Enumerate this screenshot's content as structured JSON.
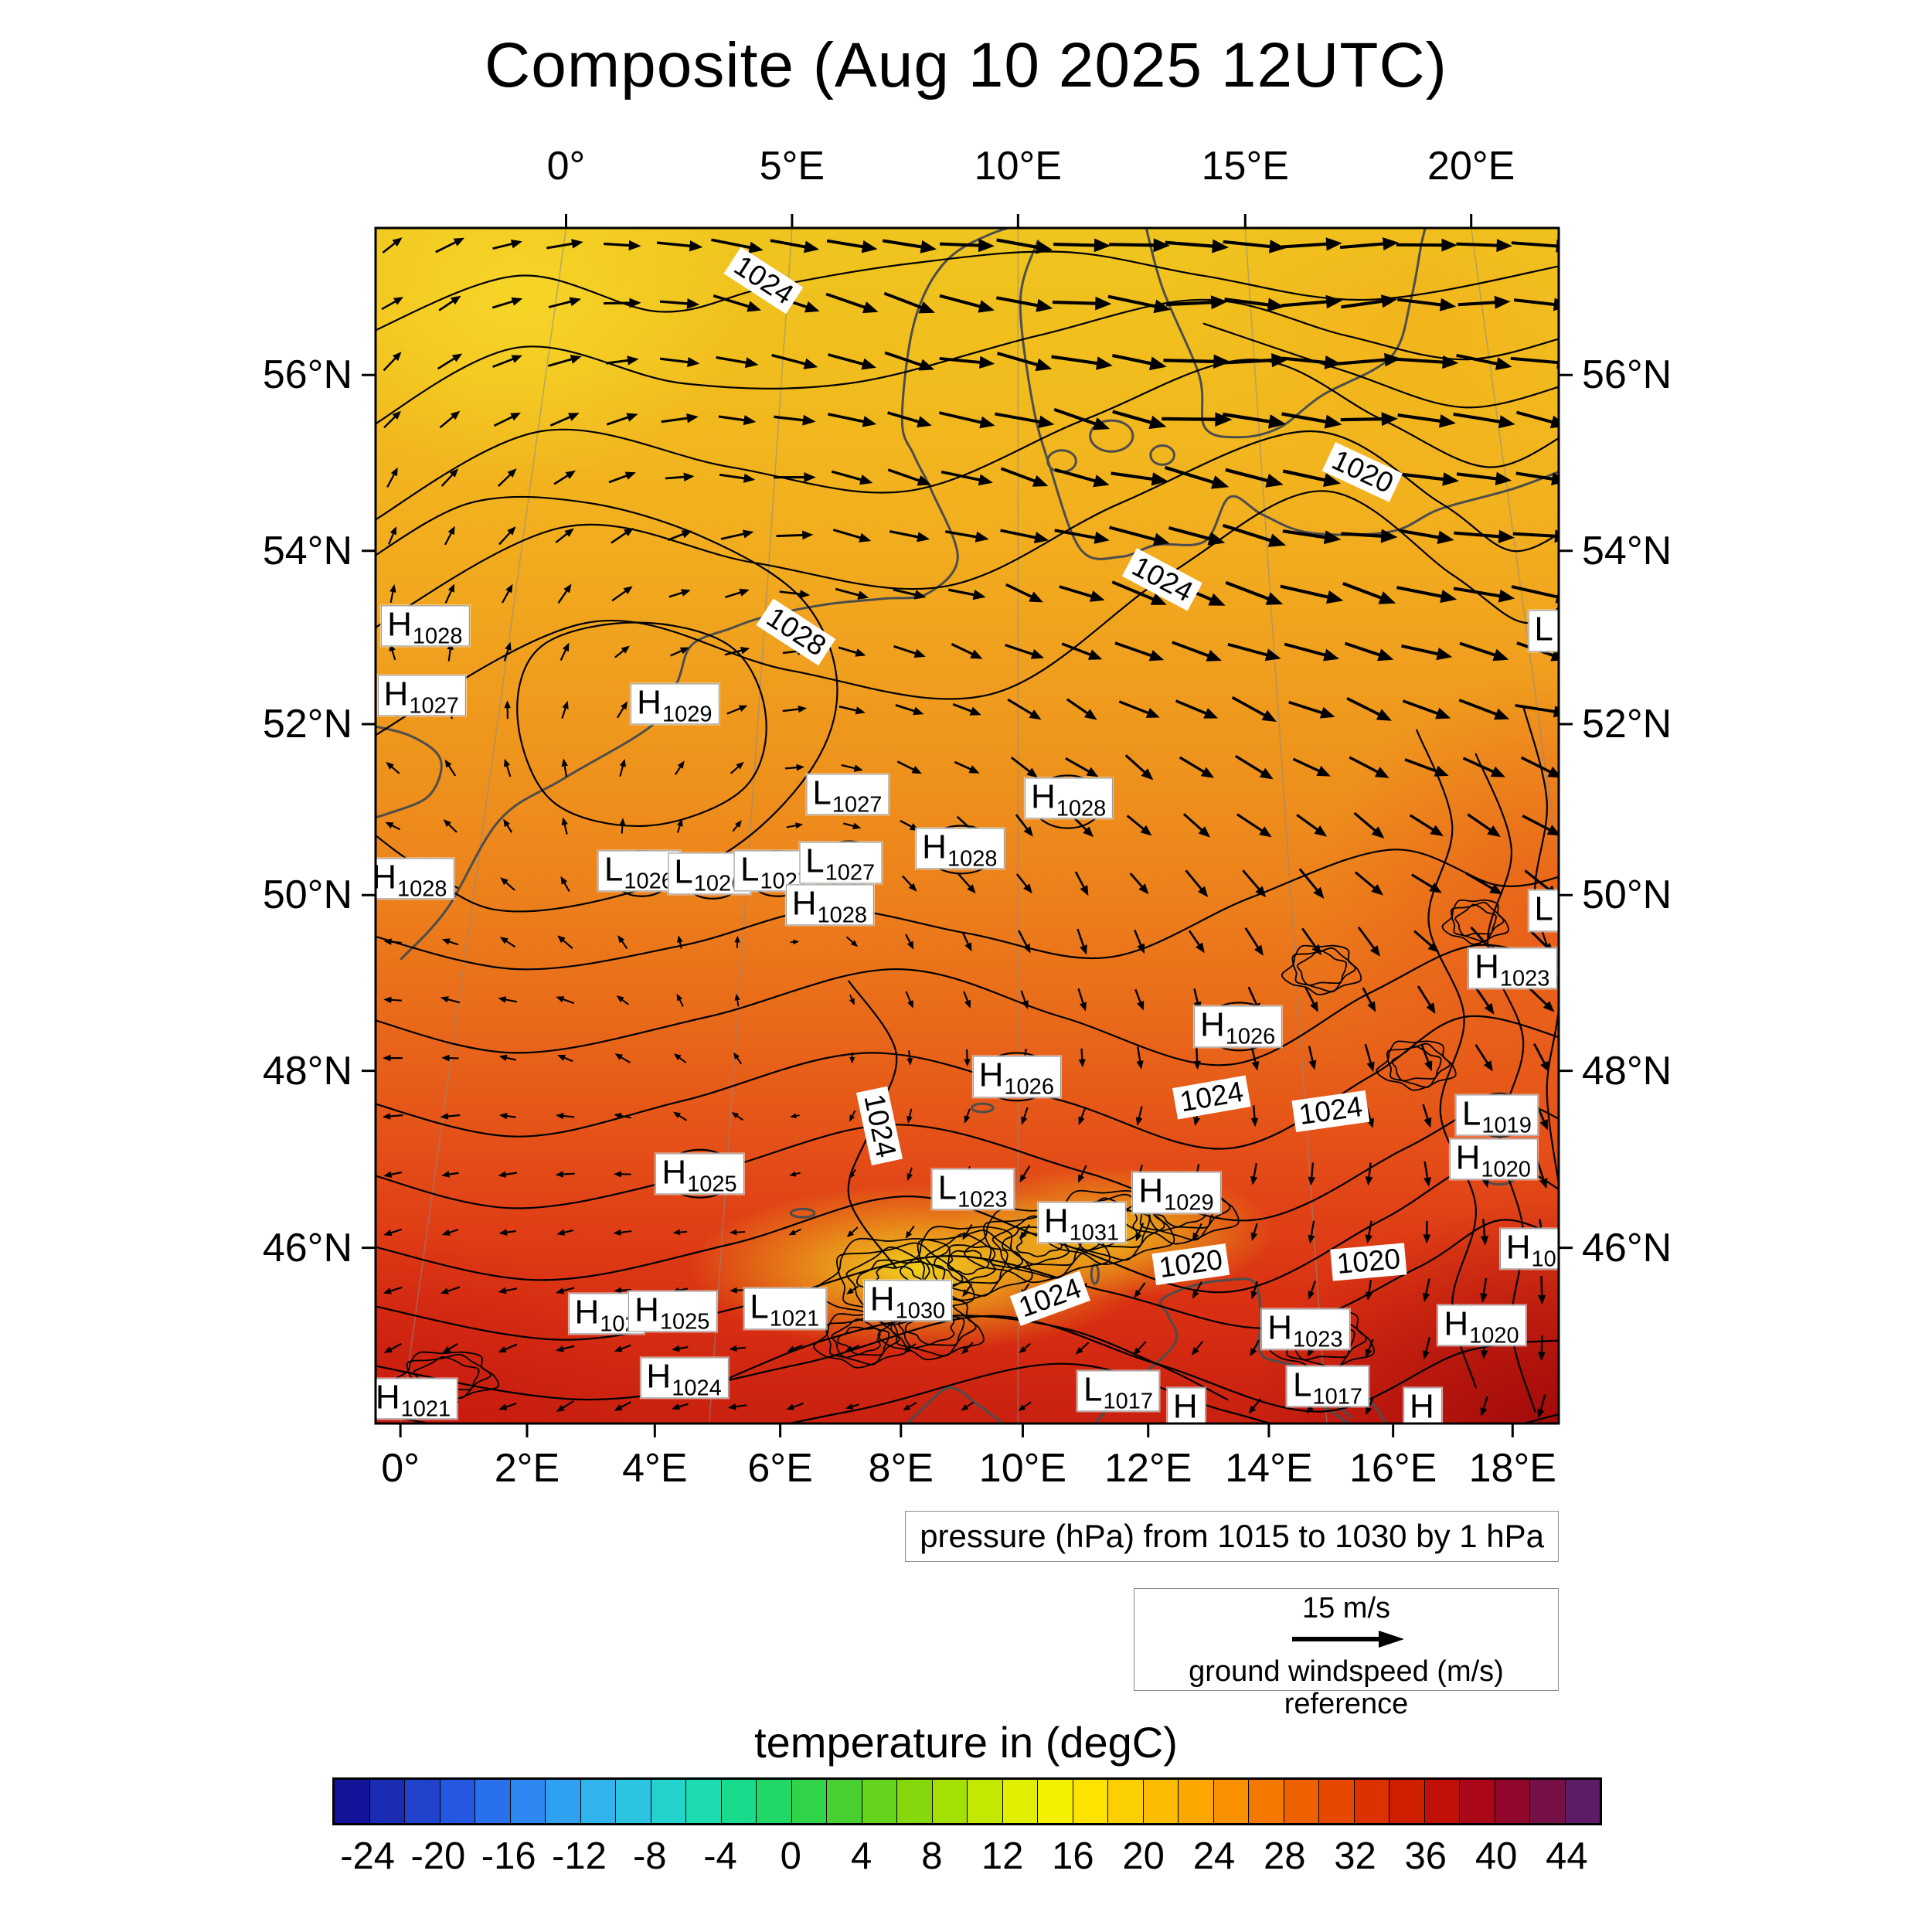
{
  "title": "Composite (Aug 10 2025 12UTC)",
  "axes": {
    "top_lon_labels": [
      "0°",
      "5°E",
      "10°E",
      "15°E",
      "20°E"
    ],
    "bottom_lon_labels": [
      "0°",
      "2°E",
      "4°E",
      "6°E",
      "8°E",
      "10°E",
      "12°E",
      "14°E",
      "16°E",
      "18°E"
    ],
    "lat_labels": [
      "56°N",
      "54°N",
      "52°N",
      "50°N",
      "48°N",
      "46°N"
    ]
  },
  "pressure_note": "pressure (hPa) from 1015 to 1030 by 1 hPa",
  "wind_legend": {
    "speed_label": "15 m/s",
    "caption": "ground windspeed (m/s) reference"
  },
  "colorbar": {
    "title": "temperature in (degC)",
    "tick_labels": [
      "-24",
      "-20",
      "-16",
      "-12",
      "-8",
      "-4",
      "0",
      "4",
      "8",
      "12",
      "16",
      "20",
      "24",
      "28",
      "32",
      "36",
      "40",
      "44"
    ],
    "colors": [
      "#14149b",
      "#1a2cb4",
      "#2042cc",
      "#2458e0",
      "#2870ec",
      "#2c88f0",
      "#30a0f0",
      "#30b4ec",
      "#2cc4e0",
      "#24d2cc",
      "#1cdcb0",
      "#18dc8c",
      "#20d868",
      "#30d448",
      "#48d030",
      "#64d41c",
      "#84d80c",
      "#a4e004",
      "#c4e800",
      "#e0ee00",
      "#f4f000",
      "#fce400",
      "#fcd000",
      "#fcbc00",
      "#fca800",
      "#f89000",
      "#f47800",
      "#ee6000",
      "#e64800",
      "#dc3200",
      "#d01e00",
      "#c01008",
      "#aa0818",
      "#92082c",
      "#781048",
      "#5c1c66"
    ]
  },
  "chart_data": {
    "type": "heatmap",
    "title": "Composite (Aug 10 2025 12UTC)",
    "xlabel_ticks_top_deg_east": [
      0,
      5,
      10,
      15,
      20
    ],
    "xlabel_ticks_bottom_deg_east": [
      0,
      2,
      4,
      6,
      8,
      10,
      12,
      14,
      16,
      18
    ],
    "ylabel_ticks_deg_north": [
      56,
      54,
      52,
      50,
      48,
      46
    ],
    "temperature_scale": {
      "min": -26,
      "max": 46,
      "step": 2,
      "units": "degC"
    },
    "pressure_contours": {
      "from_hpa": 1015,
      "to_hpa": 1030,
      "interval_hpa": 1
    },
    "pressure_centers": [
      {
        "t": "H",
        "v": "1028",
        "x": 4.2,
        "y": 33.3
      },
      {
        "t": "H",
        "v": "1027",
        "x": 3.9,
        "y": 39.1
      },
      {
        "t": "H",
        "v": "1029",
        "x": 25.3,
        "y": 39.8
      },
      {
        "t": "L",
        "v": "1027",
        "x": 39.9,
        "y": 47.4
      },
      {
        "t": "H",
        "v": "1028",
        "x": 58.6,
        "y": 47.7
      },
      {
        "t": "H",
        "v": "1028",
        "x": 49.4,
        "y": 51.9
      },
      {
        "t": "L",
        "v": "1026",
        "x": 22.3,
        "y": 53.8
      },
      {
        "t": "L",
        "v": "1026",
        "x": 28.2,
        "y": 54.0
      },
      {
        "t": "L",
        "v": "1027",
        "x": 33.8,
        "y": 53.8
      },
      {
        "t": "L",
        "v": "1027",
        "x": 39.3,
        "y": 53.1
      },
      {
        "t": "H",
        "v": "1028",
        "x": 2.9,
        "y": 54.4
      },
      {
        "t": "H",
        "v": "1028",
        "x": 38.4,
        "y": 56.6
      },
      {
        "t": "L",
        "v": "",
        "x": 98.8,
        "y": 33.7
      },
      {
        "t": "L",
        "v": "",
        "x": 98.8,
        "y": 57.1
      },
      {
        "t": "H",
        "v": "1023",
        "x": 96.1,
        "y": 61.9
      },
      {
        "t": "H",
        "v": "1026",
        "x": 72.9,
        "y": 66.8
      },
      {
        "t": "H",
        "v": "1026",
        "x": 54.2,
        "y": 71.0
      },
      {
        "t": "L",
        "v": "1019",
        "x": 94.8,
        "y": 74.2
      },
      {
        "t": "H",
        "v": "1020",
        "x": 94.5,
        "y": 77.9
      },
      {
        "t": "H",
        "v": "1025",
        "x": 27.4,
        "y": 79.1
      },
      {
        "t": "L",
        "v": "1023",
        "x": 50.5,
        "y": 80.4
      },
      {
        "t": "H",
        "v": "1029",
        "x": 67.7,
        "y": 80.7
      },
      {
        "t": "H",
        "v": "1031",
        "x": 59.7,
        "y": 83.2
      },
      {
        "t": "H",
        "v": "10",
        "x": 97.7,
        "y": 85.4
      },
      {
        "t": "H",
        "v": "102",
        "x": 19.5,
        "y": 90.8
      },
      {
        "t": "H",
        "v": "1025",
        "x": 25.1,
        "y": 90.6
      },
      {
        "t": "L",
        "v": "1021",
        "x": 34.6,
        "y": 90.4
      },
      {
        "t": "H",
        "v": "1030",
        "x": 45.0,
        "y": 89.7
      },
      {
        "t": "H",
        "v": "1023",
        "x": 78.6,
        "y": 92.1
      },
      {
        "t": "H",
        "v": "1020",
        "x": 93.5,
        "y": 91.8
      },
      {
        "t": "H",
        "v": "1024",
        "x": 26.1,
        "y": 96.2
      },
      {
        "t": "H",
        "v": "1021",
        "x": 3.2,
        "y": 97.9
      },
      {
        "t": "L",
        "v": "1017",
        "x": 62.8,
        "y": 97.3
      },
      {
        "t": "L",
        "v": "1017",
        "x": 80.5,
        "y": 96.9
      },
      {
        "t": "H",
        "v": "",
        "x": 68.5,
        "y": 98.7
      },
      {
        "t": "H",
        "v": "",
        "x": 88.5,
        "y": 98.7
      }
    ],
    "contour_labels": [
      {
        "v": "1024",
        "x": 32.8,
        "y": 4.4,
        "r": 33
      },
      {
        "v": "1020",
        "x": 83.4,
        "y": 20.4,
        "r": 25
      },
      {
        "v": "1024",
        "x": 66.5,
        "y": 29.4,
        "r": 28
      },
      {
        "v": "1028",
        "x": 35.5,
        "y": 33.8,
        "r": 33
      },
      {
        "v": "1024",
        "x": 42.6,
        "y": 75.1,
        "r": 78
      },
      {
        "v": "1024",
        "x": 70.7,
        "y": 72.7,
        "r": -10
      },
      {
        "v": "1024",
        "x": 80.7,
        "y": 73.9,
        "r": -8
      },
      {
        "v": "1020",
        "x": 68.9,
        "y": 86.7,
        "r": -8
      },
      {
        "v": "1020",
        "x": 83.9,
        "y": 86.5,
        "r": -5
      },
      {
        "v": "1024",
        "x": 57.0,
        "y": 89.5,
        "r": -20
      }
    ],
    "wind_field": {
      "reference_ms": 15,
      "angles_deg": [
        [
          -30,
          -15,
          10,
          15,
          5,
          0,
          -5,
          0
        ],
        [
          -45,
          -25,
          5,
          15,
          12,
          8,
          5,
          8
        ],
        [
          -80,
          -50,
          -15,
          12,
          18,
          15,
          12,
          10
        ],
        [
          -130,
          -90,
          -40,
          20,
          35,
          30,
          25,
          18
        ],
        [
          -165,
          -135,
          -80,
          50,
          65,
          55,
          45,
          35
        ],
        [
          175,
          -170,
          -130,
          90,
          100,
          90,
          75,
          60
        ],
        [
          160,
          170,
          -175,
          130,
          125,
          115,
          100,
          85
        ],
        [
          150,
          155,
          165,
          155,
          140,
          130,
          115,
          100
        ]
      ],
      "speeds_ms": [
        [
          5,
          7,
          10,
          12,
          13,
          13,
          12,
          12
        ],
        [
          4,
          6,
          8,
          10,
          12,
          14,
          13,
          12
        ],
        [
          3,
          4,
          5,
          7,
          10,
          13,
          13,
          12
        ],
        [
          3,
          3,
          3,
          5,
          7,
          9,
          10,
          10
        ],
        [
          3,
          3,
          2,
          3,
          5,
          6,
          7,
          8
        ],
        [
          3,
          3,
          2,
          2,
          3,
          4,
          5,
          6
        ],
        [
          3,
          3,
          2,
          2,
          3,
          3,
          4,
          5
        ],
        [
          3,
          3,
          3,
          2,
          2,
          3,
          3,
          4
        ]
      ]
    }
  }
}
